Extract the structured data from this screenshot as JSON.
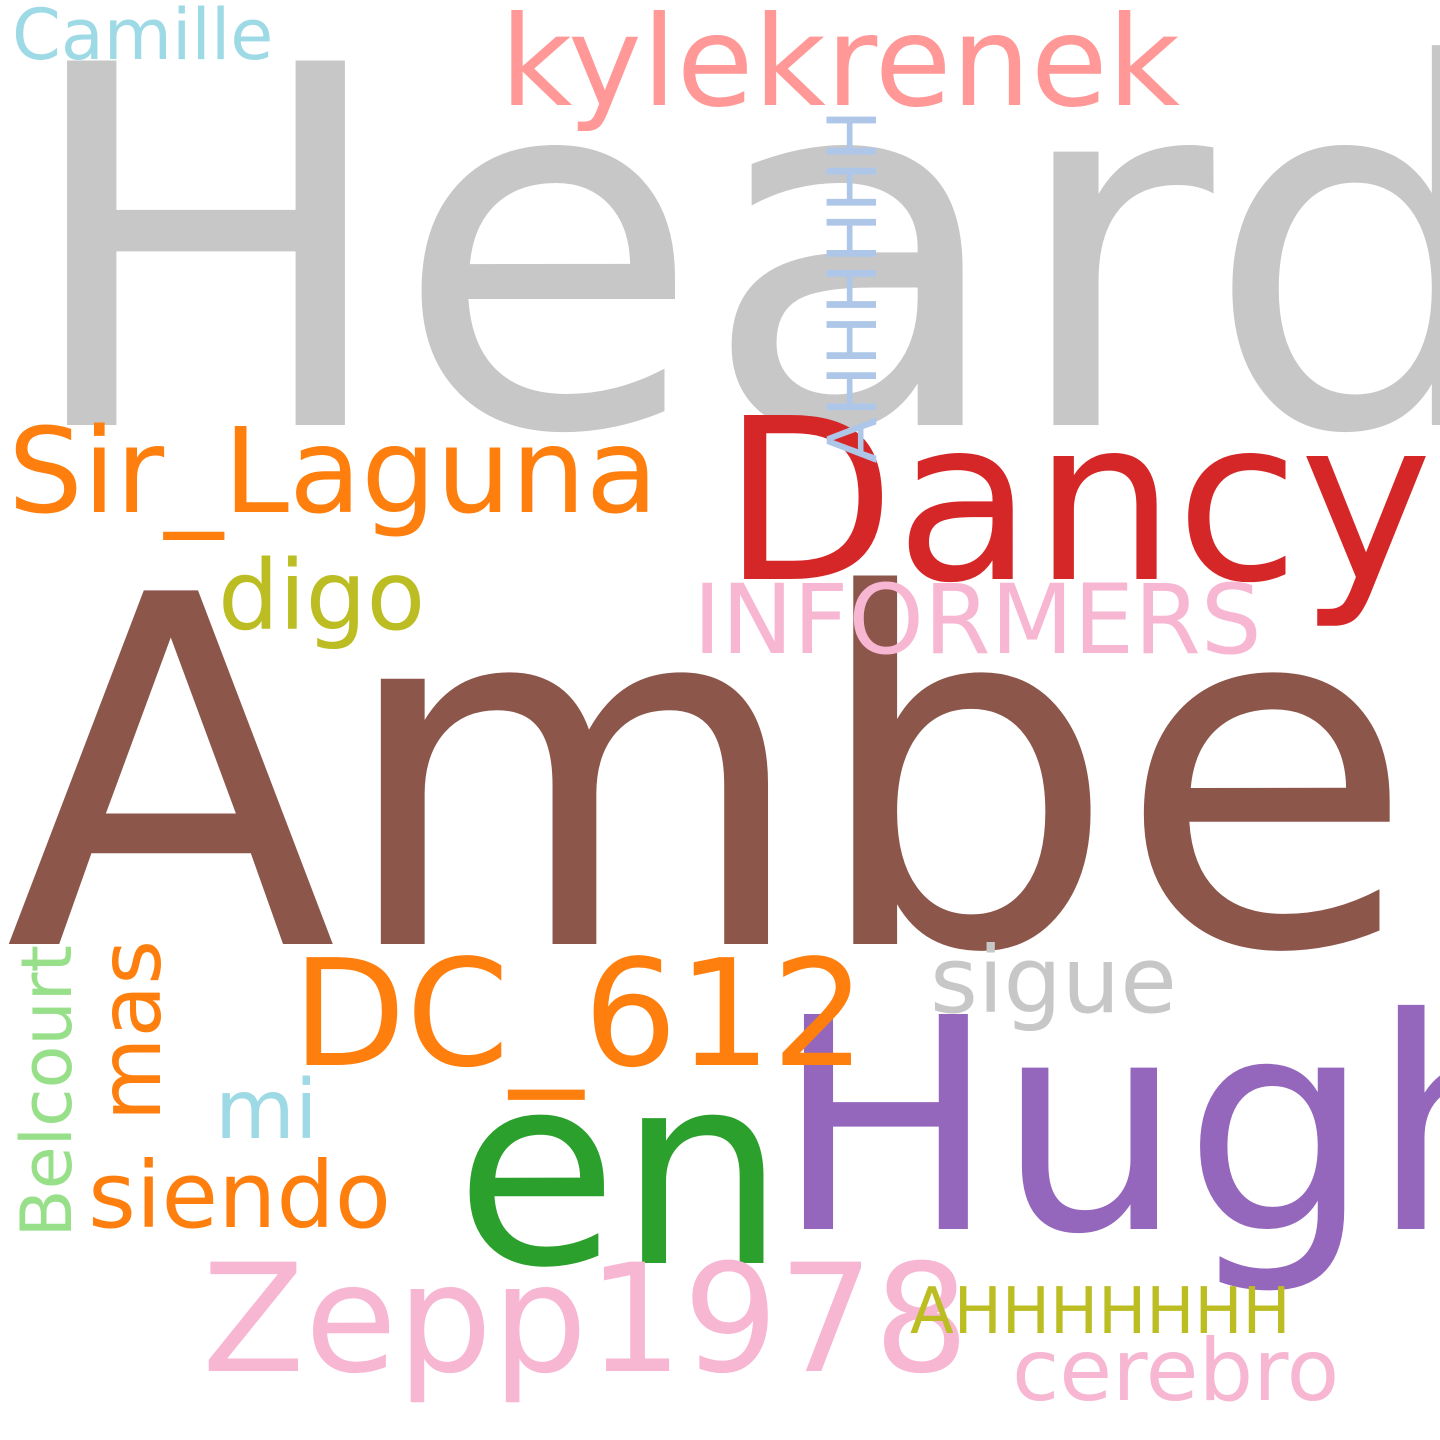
{
  "word_cloud": {
    "words": [
      {
        "text": "Heard",
        "color": "#c7c7c7"
      },
      {
        "text": "Amber",
        "color": "#8c564b"
      },
      {
        "text": "Hugh",
        "color": "#9467bd"
      },
      {
        "text": "en",
        "color": "#2ca02c"
      },
      {
        "text": "Dancy",
        "color": "#d62728"
      },
      {
        "text": "kylekrenek",
        "color": "#ff9896"
      },
      {
        "text": "Sir_Laguna",
        "color": "#ff7f0e"
      },
      {
        "text": "DC_612",
        "color": "#ff7f0e"
      },
      {
        "text": "Zepp1978",
        "color": "#f7b6d2"
      },
      {
        "text": "INFORMERS",
        "color": "#f7b6d2"
      },
      {
        "text": "AHHHHHH",
        "color": "#aec7e8"
      },
      {
        "text": "AHHHHHHH",
        "color": "#bcbd22"
      },
      {
        "text": "digo",
        "color": "#bcbd22"
      },
      {
        "text": "sigue",
        "color": "#c7c7c7"
      },
      {
        "text": "mas",
        "color": "#ff7f0e"
      },
      {
        "text": "mi",
        "color": "#9edae5"
      },
      {
        "text": "siendo",
        "color": "#ff7f0e"
      },
      {
        "text": "Belcourt",
        "color": "#98df8a"
      },
      {
        "text": "cerebro",
        "color": "#f7b6d2"
      },
      {
        "text": "Camille",
        "color": "#9edae5"
      }
    ]
  }
}
